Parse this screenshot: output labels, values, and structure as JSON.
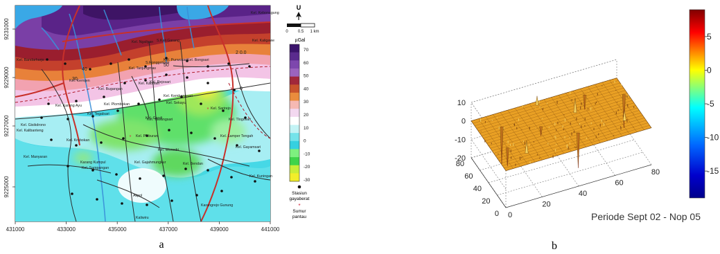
{
  "panel_a": {
    "label": "a",
    "north_label": "U",
    "scale": {
      "ticks": [
        "0",
        "0.5",
        "1 km"
      ]
    },
    "legend": {
      "unit": "µGal",
      "ticks": [
        "70",
        "60",
        "50",
        "40",
        "30",
        "20",
        "10",
        "0",
        "-10",
        "-20",
        "-30"
      ],
      "colors": [
        "#3a136b",
        "#5a2b8e",
        "#7d47ad",
        "#9b63be",
        "#a1273a",
        "#c8532c",
        "#ea8c3c",
        "#f6b9b3",
        "#f3d8f0",
        "#ffffff",
        "#c3f3f5",
        "#75e3ea",
        "#36d0e0",
        "#7ef07f",
        "#3fd44a",
        "#c8ee37",
        "#f2ee2a"
      ],
      "station_label": [
        "Stasiun",
        "gayaberat"
      ],
      "well_label": [
        "Sumur",
        "pantau"
      ]
    },
    "x_ticks": [
      "431000",
      "433000",
      "435000",
      "437000",
      "439000",
      "441000"
    ],
    "y_ticks": [
      "9231000",
      "9229000",
      "9227000",
      "9225000"
    ],
    "place_labels": [
      "Kel. Bandarharjo",
      "Kel. Kemijen",
      "Kel. Tanjungmas",
      "Kel. Kebonagung",
      "Kel. Kaligawe",
      "Kel. Purwosari",
      "Kel. Rejosari",
      "Kel. Bugangan",
      "Kel. Kauman",
      "Kel. Kembangsari",
      "Kel. Karang Ayu",
      "Kel. Plombokan",
      "Kel. Sekayu",
      "Kel. Sarirejo",
      "Kel. Tlogosari",
      "Kel. Lamper Tengah",
      "Kel. Gayamsari",
      "Kel. Wonodri",
      "Kel. Pleburan",
      "Kel. Candi",
      "Kel. Ngaliyan",
      "Kel. Manyaran",
      "Kel. Krobokan",
      "Kel. Tawangsari",
      "Kel. Gajahmungkur",
      "Kel. Sampangan",
      "Kel. Bendan",
      "Kel. Tegalsari",
      "Kel. Gisikdrono",
      "Kel. Bongsari",
      "Kel. Kalibanteng",
      "Kel. Kuningan",
      "Karang Kumpul",
      "Akpol",
      "Kaliwiru",
      "Karangrejo Gunung",
      "S.Ronggolawe",
      "S.Kali Garang"
    ]
  },
  "panel_b": {
    "label": "b",
    "caption": "Periode Sept 02 - Nop 05"
  },
  "chart_data": [
    {
      "type": "heatmap",
      "title": "",
      "colorbar_label": "µGal",
      "colorbar_range": [
        -30,
        70
      ],
      "xlim": [
        431000,
        441000
      ],
      "ylim": [
        9224000,
        9232000
      ],
      "x_ticks": [
        431000,
        433000,
        435000,
        437000,
        439000,
        441000
      ],
      "y_ticks": [
        9225000,
        9227000,
        9229000,
        9231000
      ],
      "contour_levels": [
        -30,
        -20,
        -10,
        0,
        10,
        20,
        30,
        40,
        50,
        60,
        70
      ]
    },
    {
      "type": "surface",
      "title": "",
      "xlim": [
        0,
        80
      ],
      "ylim": [
        0,
        80
      ],
      "zlim": [
        -20,
        10
      ],
      "x_ticks": [
        0,
        20,
        40,
        60,
        80
      ],
      "y_ticks": [
        20,
        40,
        60,
        80
      ],
      "z_ticks": [
        10,
        0,
        -10,
        -20
      ],
      "colorbar_range": [
        -19,
        9
      ],
      "colorbar_ticks": [
        5,
        0,
        -5,
        -10,
        -15
      ],
      "grid": true,
      "surface_color": "#e9a024",
      "base_level": 0,
      "spikes_down": [
        {
          "x": 12,
          "y": 60,
          "z": -20
        },
        {
          "x": 45,
          "y": 22,
          "z": -19
        },
        {
          "x": 78,
          "y": 55,
          "z": -18
        },
        {
          "x": 8,
          "y": 30,
          "z": -10
        },
        {
          "x": 60,
          "y": 70,
          "z": -8
        },
        {
          "x": 30,
          "y": 45,
          "z": -5
        }
      ],
      "spikes_up": [
        {
          "x": 15,
          "y": 15,
          "z": 7
        },
        {
          "x": 50,
          "y": 50,
          "z": 8
        },
        {
          "x": 70,
          "y": 20,
          "z": 6
        },
        {
          "x": 35,
          "y": 75,
          "z": 5
        }
      ]
    }
  ]
}
